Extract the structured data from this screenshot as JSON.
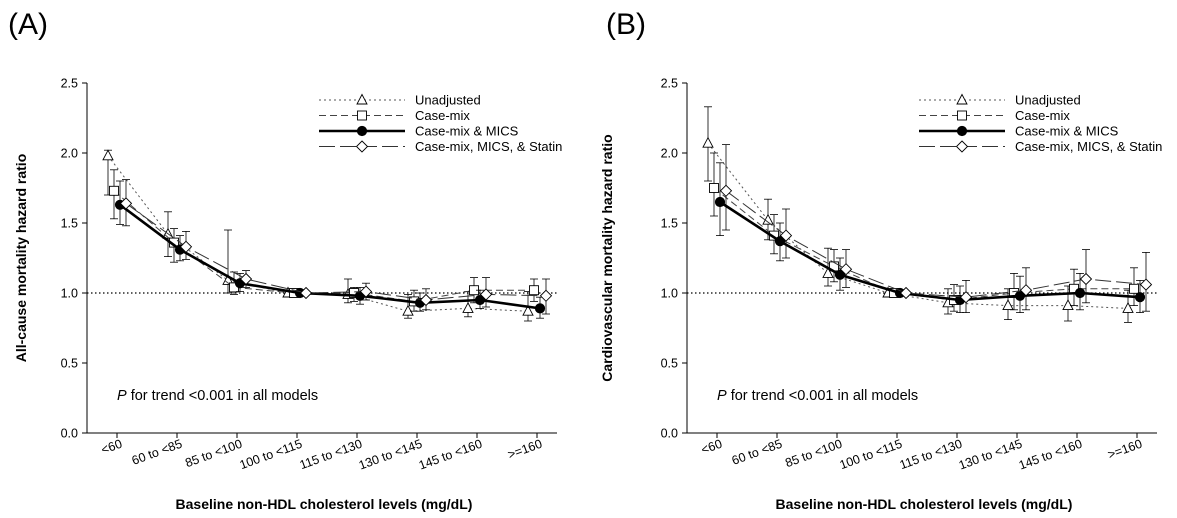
{
  "chart_data": [
    {
      "type": "line",
      "panel_label": "(A)",
      "xlabel": "Baseline non-HDL cholesterol levels (mg/dL)",
      "ylabel": "All-cause mortality hazard ratio",
      "categories": [
        "<60",
        "60 to <85",
        "85 to <100",
        "100 to <115",
        "115 to <130",
        "130 to <145",
        "145 to <160",
        ">=160"
      ],
      "ylim": [
        0,
        2.5
      ],
      "yticks": [
        "0.0",
        "0.5",
        "1.0",
        "1.5",
        "2.0",
        "2.5"
      ],
      "reference_line": 1.0,
      "annotation": {
        "p": "P",
        "rest": " for trend <0.001 in all models"
      },
      "series": [
        {
          "name": "Unadjusted",
          "marker": "triangle",
          "line": "dotted",
          "values": [
            1.98,
            1.42,
            1.09,
            1.0,
            0.99,
            0.87,
            0.89,
            0.87
          ],
          "ci_low": [
            1.7,
            1.26,
            1.0,
            1.0,
            0.93,
            0.82,
            0.83,
            0.8
          ],
          "ci_high": [
            2.02,
            1.58,
            1.45,
            1.0,
            1.1,
            0.99,
            1.01,
            1.01
          ]
        },
        {
          "name": "Case-mix",
          "marker": "square",
          "line": "dashed",
          "values": [
            1.73,
            1.36,
            1.04,
            1.0,
            1.0,
            0.94,
            1.02,
            1.02
          ],
          "ci_low": [
            1.53,
            1.22,
            0.99,
            1.0,
            0.94,
            0.87,
            0.93,
            0.94
          ],
          "ci_high": [
            1.88,
            1.46,
            1.15,
            1.0,
            1.04,
            1.02,
            1.11,
            1.1
          ]
        },
        {
          "name": "Case-mix & MICS",
          "marker": "filled-circle",
          "line": "solid-bold",
          "values": [
            1.63,
            1.31,
            1.07,
            1.0,
            0.98,
            0.93,
            0.95,
            0.89
          ],
          "ci_low": [
            1.49,
            1.23,
            1.01,
            1.0,
            0.92,
            0.87,
            0.89,
            0.82
          ],
          "ci_high": [
            1.8,
            1.41,
            1.14,
            1.0,
            1.04,
            1.0,
            1.02,
            0.97
          ]
        },
        {
          "name": "Case-mix, MICS, & Statin",
          "marker": "diamond",
          "line": "long-dash",
          "values": [
            1.64,
            1.33,
            1.1,
            1.0,
            1.01,
            0.95,
            0.99,
            0.98
          ],
          "ci_low": [
            1.48,
            1.24,
            1.04,
            1.0,
            0.95,
            0.88,
            0.9,
            0.85
          ],
          "ci_high": [
            1.81,
            1.44,
            1.16,
            1.0,
            1.07,
            1.03,
            1.11,
            1.1
          ]
        }
      ]
    },
    {
      "type": "line",
      "panel_label": "(B)",
      "xlabel": "Baseline non-HDL cholesterol levels (mg/dL)",
      "ylabel": "Cardiovascular mortality hazard ratio",
      "categories": [
        "<60",
        "60 to <85",
        "85 to <100",
        "100 to <115",
        "115 to <130",
        "130 to <145",
        "145 to <160",
        ">=160"
      ],
      "ylim": [
        0,
        2.5
      ],
      "yticks": [
        "0.0",
        "0.5",
        "1.0",
        "1.5",
        "2.0",
        "2.5"
      ],
      "reference_line": 1.0,
      "annotation": {
        "p": "P",
        "rest": " for trend <0.001 in all models"
      },
      "series": [
        {
          "name": "Unadjusted",
          "marker": "triangle",
          "line": "dotted",
          "values": [
            2.07,
            1.52,
            1.14,
            1.0,
            0.93,
            0.91,
            0.91,
            0.89
          ],
          "ci_low": [
            1.8,
            1.38,
            1.05,
            1.0,
            0.85,
            0.81,
            0.8,
            0.79
          ],
          "ci_high": [
            2.33,
            1.67,
            1.32,
            1.0,
            1.03,
            1.03,
            1.05,
            1.02
          ]
        },
        {
          "name": "Case-mix",
          "marker": "square",
          "line": "dashed",
          "values": [
            1.75,
            1.41,
            1.19,
            1.0,
            0.95,
            1.0,
            1.03,
            1.03
          ],
          "ci_low": [
            1.55,
            1.28,
            1.08,
            1.0,
            0.87,
            0.88,
            0.91,
            0.91
          ],
          "ci_high": [
            2.0,
            1.56,
            1.31,
            1.0,
            1.06,
            1.14,
            1.17,
            1.18
          ]
        },
        {
          "name": "Case-mix & MICS",
          "marker": "filled-circle",
          "line": "solid-bold",
          "values": [
            1.65,
            1.37,
            1.13,
            1.0,
            0.95,
            0.98,
            1.0,
            0.97
          ],
          "ci_low": [
            1.41,
            1.23,
            1.02,
            1.0,
            0.86,
            0.86,
            0.88,
            0.86
          ],
          "ci_high": [
            1.93,
            1.5,
            1.25,
            1.0,
            1.05,
            1.12,
            1.14,
            1.09
          ]
        },
        {
          "name": "Case-mix, MICS, & Statin",
          "marker": "diamond",
          "line": "long-dash",
          "values": [
            1.73,
            1.41,
            1.17,
            1.0,
            0.97,
            1.02,
            1.1,
            1.06
          ],
          "ci_low": [
            1.45,
            1.25,
            1.04,
            1.0,
            0.86,
            0.88,
            0.93,
            0.87
          ],
          "ci_high": [
            2.06,
            1.6,
            1.31,
            1.0,
            1.09,
            1.18,
            1.31,
            1.29
          ]
        }
      ]
    }
  ]
}
